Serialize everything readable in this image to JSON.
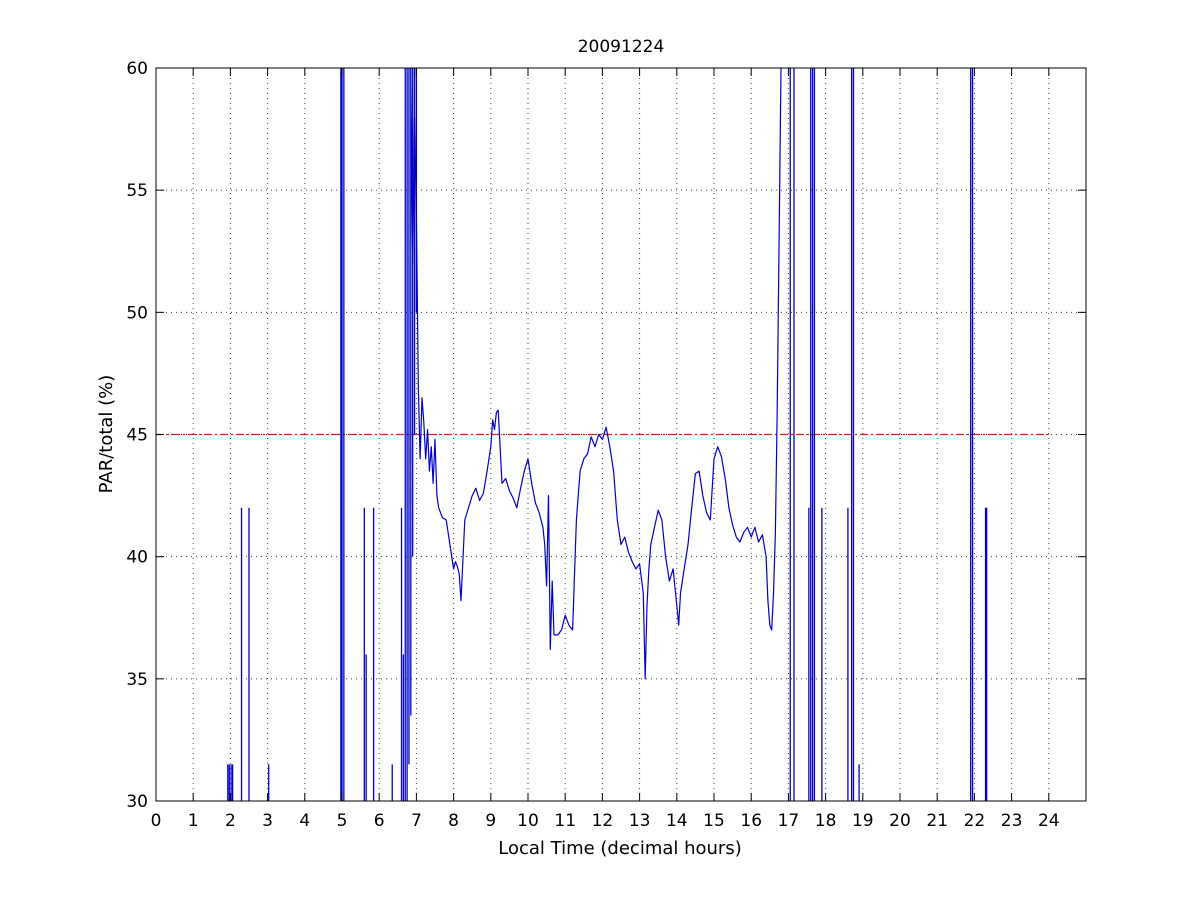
{
  "chart_data": {
    "type": "line",
    "title": "20091224",
    "xlabel": "Local Time (decimal hours)",
    "ylabel": "PAR/total (%)",
    "xlim": [
      0,
      25
    ],
    "ylim": [
      30,
      60
    ],
    "x_ticks": [
      0,
      1,
      2,
      3,
      4,
      5,
      6,
      7,
      8,
      9,
      10,
      11,
      12,
      13,
      14,
      15,
      16,
      17,
      18,
      19,
      20,
      21,
      22,
      23,
      24
    ],
    "y_ticks": [
      30,
      35,
      40,
      45,
      50,
      55,
      60
    ],
    "grid": true,
    "colors": {
      "series": "#0000cc",
      "reference": "#cc2222"
    },
    "reference_line": {
      "y": 45,
      "x_range": [
        0,
        24
      ],
      "style": "dash-dot"
    },
    "series": [
      {
        "x": [
          6.85,
          6.9,
          6.95,
          7.0,
          7.05,
          7.1,
          7.15,
          7.2,
          7.25,
          7.3,
          7.35,
          7.4,
          7.45,
          7.5,
          7.55,
          7.6,
          7.7,
          7.8,
          7.9,
          8.0,
          8.05,
          8.1,
          8.15,
          8.2,
          8.3,
          8.4,
          8.5,
          8.6,
          8.7,
          8.8,
          8.9,
          9.0,
          9.05,
          9.1,
          9.15,
          9.2,
          9.3,
          9.4,
          9.5,
          9.6,
          9.7,
          9.8,
          9.9,
          10.0,
          10.1,
          10.2,
          10.3,
          10.4,
          10.45,
          10.5,
          10.55,
          10.6,
          10.65,
          10.7,
          10.8,
          10.9,
          11.0,
          11.1,
          11.2,
          11.3,
          11.4,
          11.5,
          11.6,
          11.7,
          11.8,
          11.9,
          12.0,
          12.1,
          12.2,
          12.3,
          12.4,
          12.5,
          12.6,
          12.7,
          12.8,
          12.9,
          13.0,
          13.1,
          13.15,
          13.2,
          13.25,
          13.3,
          13.4,
          13.5,
          13.6,
          13.7,
          13.8,
          13.9,
          14.0,
          14.05,
          14.1,
          14.2,
          14.3,
          14.4,
          14.5,
          14.6,
          14.7,
          14.8,
          14.9,
          15.0,
          15.1,
          15.2,
          15.3,
          15.4,
          15.5,
          15.6,
          15.7,
          15.8,
          15.9,
          16.0,
          16.1,
          16.2,
          16.3,
          16.4,
          16.45,
          16.5,
          16.55,
          16.6,
          16.65,
          16.7
        ],
        "y": [
          60,
          52,
          58,
          54,
          47,
          44,
          46.5,
          45.5,
          44,
          45.2,
          43.5,
          44.5,
          43,
          44.8,
          42.5,
          42,
          41.6,
          41.5,
          40.5,
          39.5,
          39.8,
          39.6,
          39.3,
          38.2,
          41.5,
          42,
          42.5,
          42.8,
          42.3,
          42.6,
          43.5,
          44.5,
          45.6,
          45.2,
          45.9,
          46,
          43,
          43.2,
          42.7,
          42.4,
          42,
          42.8,
          43.5,
          44,
          43,
          42.2,
          41.8,
          41.2,
          40.5,
          38.8,
          42.5,
          36.2,
          39,
          36.8,
          36.8,
          37,
          37.6,
          37.2,
          37,
          41.5,
          43.5,
          44,
          44.2,
          44.9,
          44.5,
          45,
          44.8,
          45.3,
          44.5,
          43.5,
          41.5,
          40.5,
          40.8,
          40.2,
          39.8,
          39.5,
          39.7,
          38.5,
          35,
          38,
          39.5,
          40.5,
          41.2,
          41.9,
          41.5,
          40,
          39,
          39.5,
          38,
          37.2,
          38.5,
          39.5,
          40.5,
          42,
          43.4,
          43.5,
          42.5,
          41.8,
          41.5,
          44,
          44.5,
          44.1,
          43.2,
          42,
          41.3,
          40.8,
          40.6,
          41,
          41.2,
          40.8,
          41.2,
          40.6,
          40.9,
          40,
          38.2,
          37.2,
          37,
          38.5,
          41,
          46
        ]
      },
      {
        "x": [
          16.7,
          16.8
        ],
        "y": [
          46,
          60
        ]
      }
    ],
    "spikes": [
      {
        "x": 1.93,
        "from": 30,
        "to": 31.5
      },
      {
        "x": 1.97,
        "from": 30,
        "to": 31.5
      },
      {
        "x": 2.02,
        "from": 30,
        "to": 31.5
      },
      {
        "x": 2.06,
        "from": 30,
        "to": 31.5
      },
      {
        "x": 2.3,
        "from": 30,
        "to": 42
      },
      {
        "x": 2.5,
        "from": 30,
        "to": 42
      },
      {
        "x": 3.03,
        "from": 30,
        "to": 31.5
      },
      {
        "x": 4.97,
        "from": 30,
        "to": 60
      },
      {
        "x": 5.0,
        "from": 30,
        "to": 60
      },
      {
        "x": 5.05,
        "from": 30,
        "to": 60
      },
      {
        "x": 5.6,
        "from": 30,
        "to": 42
      },
      {
        "x": 5.65,
        "from": 30,
        "to": 36
      },
      {
        "x": 5.85,
        "from": 30,
        "to": 42
      },
      {
        "x": 6.35,
        "from": 30,
        "to": 31.5
      },
      {
        "x": 6.6,
        "from": 30,
        "to": 42
      },
      {
        "x": 6.65,
        "from": 30,
        "to": 36
      },
      {
        "x": 6.7,
        "from": 30,
        "to": 60
      },
      {
        "x": 6.75,
        "from": 30,
        "to": 60
      },
      {
        "x": 6.8,
        "from": 31.5,
        "to": 60
      },
      {
        "x": 6.85,
        "from": 33.5,
        "to": 60
      },
      {
        "x": 6.9,
        "from": 40,
        "to": 60
      },
      {
        "x": 6.95,
        "from": 45,
        "to": 60
      },
      {
        "x": 7.0,
        "from": 50,
        "to": 60
      },
      {
        "x": 17.05,
        "from": 30,
        "to": 60
      },
      {
        "x": 17.15,
        "from": 30,
        "to": 60
      },
      {
        "x": 17.55,
        "from": 30,
        "to": 42
      },
      {
        "x": 17.6,
        "from": 30,
        "to": 60
      },
      {
        "x": 17.65,
        "from": 30,
        "to": 60
      },
      {
        "x": 17.7,
        "from": 30,
        "to": 60
      },
      {
        "x": 17.9,
        "from": 30,
        "to": 42
      },
      {
        "x": 18.6,
        "from": 30,
        "to": 42
      },
      {
        "x": 18.7,
        "from": 30,
        "to": 60
      },
      {
        "x": 18.75,
        "from": 30,
        "to": 60
      },
      {
        "x": 18.9,
        "from": 30,
        "to": 31.5
      },
      {
        "x": 21.9,
        "from": 30,
        "to": 60
      },
      {
        "x": 21.95,
        "from": 30,
        "to": 60
      },
      {
        "x": 22.3,
        "from": 30,
        "to": 42
      },
      {
        "x": 22.33,
        "from": 30,
        "to": 42
      }
    ]
  }
}
